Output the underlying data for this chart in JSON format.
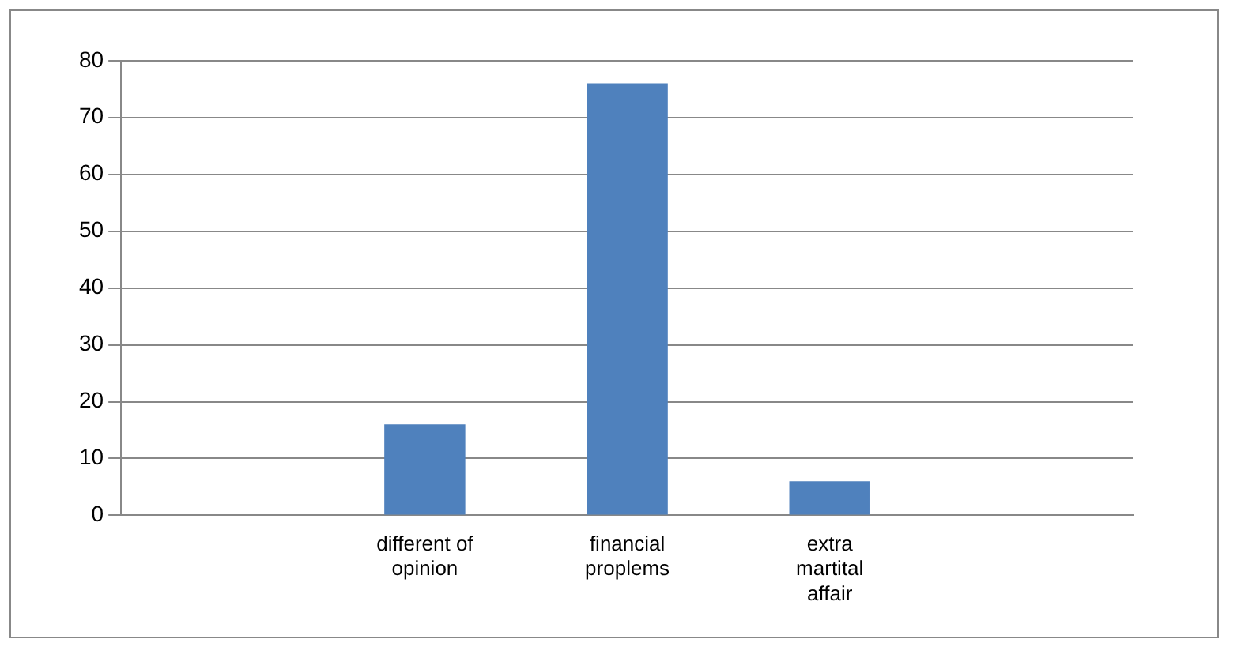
{
  "chart_data": {
    "type": "bar",
    "categories": [
      null,
      "different of opinion",
      "financial proplems",
      "extra martital affair",
      null
    ],
    "values": [
      null,
      16,
      76,
      6,
      null
    ],
    "color": "#4f81bd",
    "ylim": [
      0,
      80
    ],
    "yticks": [
      0,
      10,
      20,
      30,
      40,
      50,
      60,
      70,
      80
    ],
    "grid": "y",
    "legend": false
  }
}
